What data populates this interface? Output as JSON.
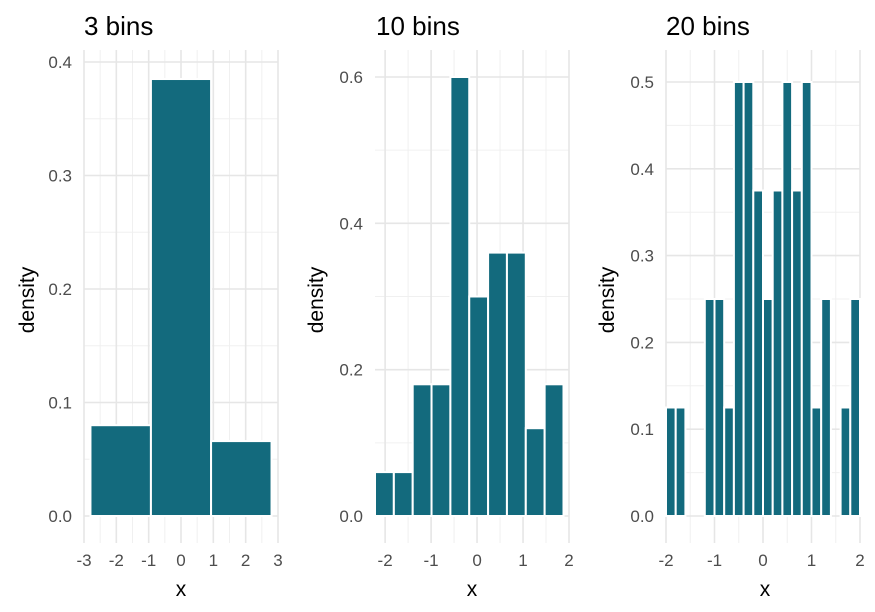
{
  "chart_data": [
    {
      "type": "bar",
      "title": "3 bins",
      "xlabel": "x",
      "ylabel": "density",
      "xlim": [
        -3,
        3
      ],
      "ylim": [
        0,
        0.4
      ],
      "xticks": [
        "-3",
        "-2",
        "-1",
        "0",
        "1",
        "2",
        "3"
      ],
      "yticks": [
        "0.0",
        "0.1",
        "0.2",
        "0.3",
        "0.4"
      ],
      "grid": true,
      "bin_edges": [
        -2.8,
        -0.93,
        0.93,
        2.8
      ],
      "values": [
        0.08,
        0.385,
        0.066
      ]
    },
    {
      "type": "bar",
      "title": "10 bins",
      "xlabel": "x",
      "ylabel": "density",
      "xlim": [
        -2,
        2
      ],
      "ylim": [
        0,
        0.6
      ],
      "xticks": [
        "-2",
        "-1",
        "0",
        "1",
        "2"
      ],
      "yticks": [
        "0.0",
        "0.2",
        "0.4",
        "0.6"
      ],
      "grid": true,
      "bin_edges": [
        -2.22,
        -1.81,
        -1.4,
        -0.99,
        -0.58,
        -0.17,
        0.24,
        0.65,
        1.06,
        1.47,
        1.88
      ],
      "values": [
        0.06,
        0.06,
        0.18,
        0.18,
        0.6,
        0.3,
        0.36,
        0.36,
        0.12,
        0.18
      ]
    },
    {
      "type": "bar",
      "title": "20 bins",
      "xlabel": "x",
      "ylabel": "density",
      "xlim": [
        -2,
        2
      ],
      "ylim": [
        0,
        0.5
      ],
      "xticks": [
        "-2",
        "-1",
        "0",
        "1",
        "2"
      ],
      "yticks": [
        "0.0",
        "0.1",
        "0.2",
        "0.3",
        "0.4",
        "0.5"
      ],
      "grid": true,
      "bin_edges": [
        -2.0,
        -1.8,
        -1.6,
        -1.4,
        -1.2,
        -1.0,
        -0.8,
        -0.6,
        -0.4,
        -0.2,
        0.0,
        0.2,
        0.4,
        0.6,
        0.8,
        1.0,
        1.2,
        1.4,
        1.6,
        1.8,
        2.0
      ],
      "values": [
        0.125,
        0.125,
        0,
        0,
        0.25,
        0.25,
        0.125,
        0.5,
        0.5,
        0.375,
        0.25,
        0.375,
        0.5,
        0.375,
        0.5,
        0.125,
        0.25,
        0,
        0.125,
        0.25
      ]
    }
  ],
  "colors": {
    "bar_fill": "#136a7d",
    "bar_outline": "#ffffff",
    "grid": "#e6e6e6",
    "tick_text": "#4d4d4d",
    "text": "#000000",
    "background": "#ffffff"
  }
}
